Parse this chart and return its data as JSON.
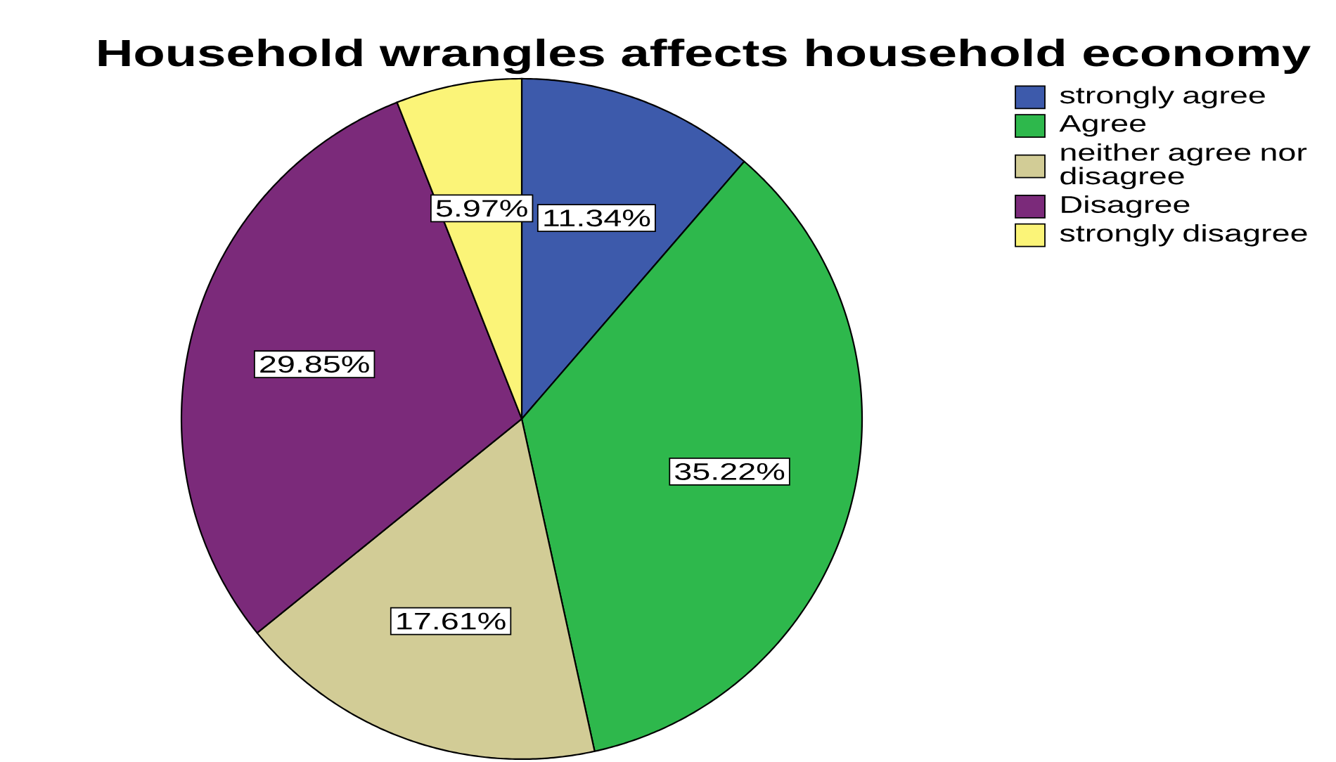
{
  "chart_data": {
    "type": "pie",
    "title": "Household wrangles affects household economy",
    "categories": [
      "strongly agree",
      "Agree",
      "neither agree nor disagree",
      "Disagree",
      "strongly disagree"
    ],
    "values": [
      11.34,
      35.22,
      17.61,
      29.85,
      5.97
    ],
    "colors": [
      "#3d5aab",
      "#2eb84c",
      "#d2cc96",
      "#7b2a7a",
      "#fbf478"
    ],
    "value_labels": [
      "11.34%",
      "35.22%",
      "17.61%",
      "29.85%",
      "5.97%"
    ],
    "legend": "top right"
  }
}
